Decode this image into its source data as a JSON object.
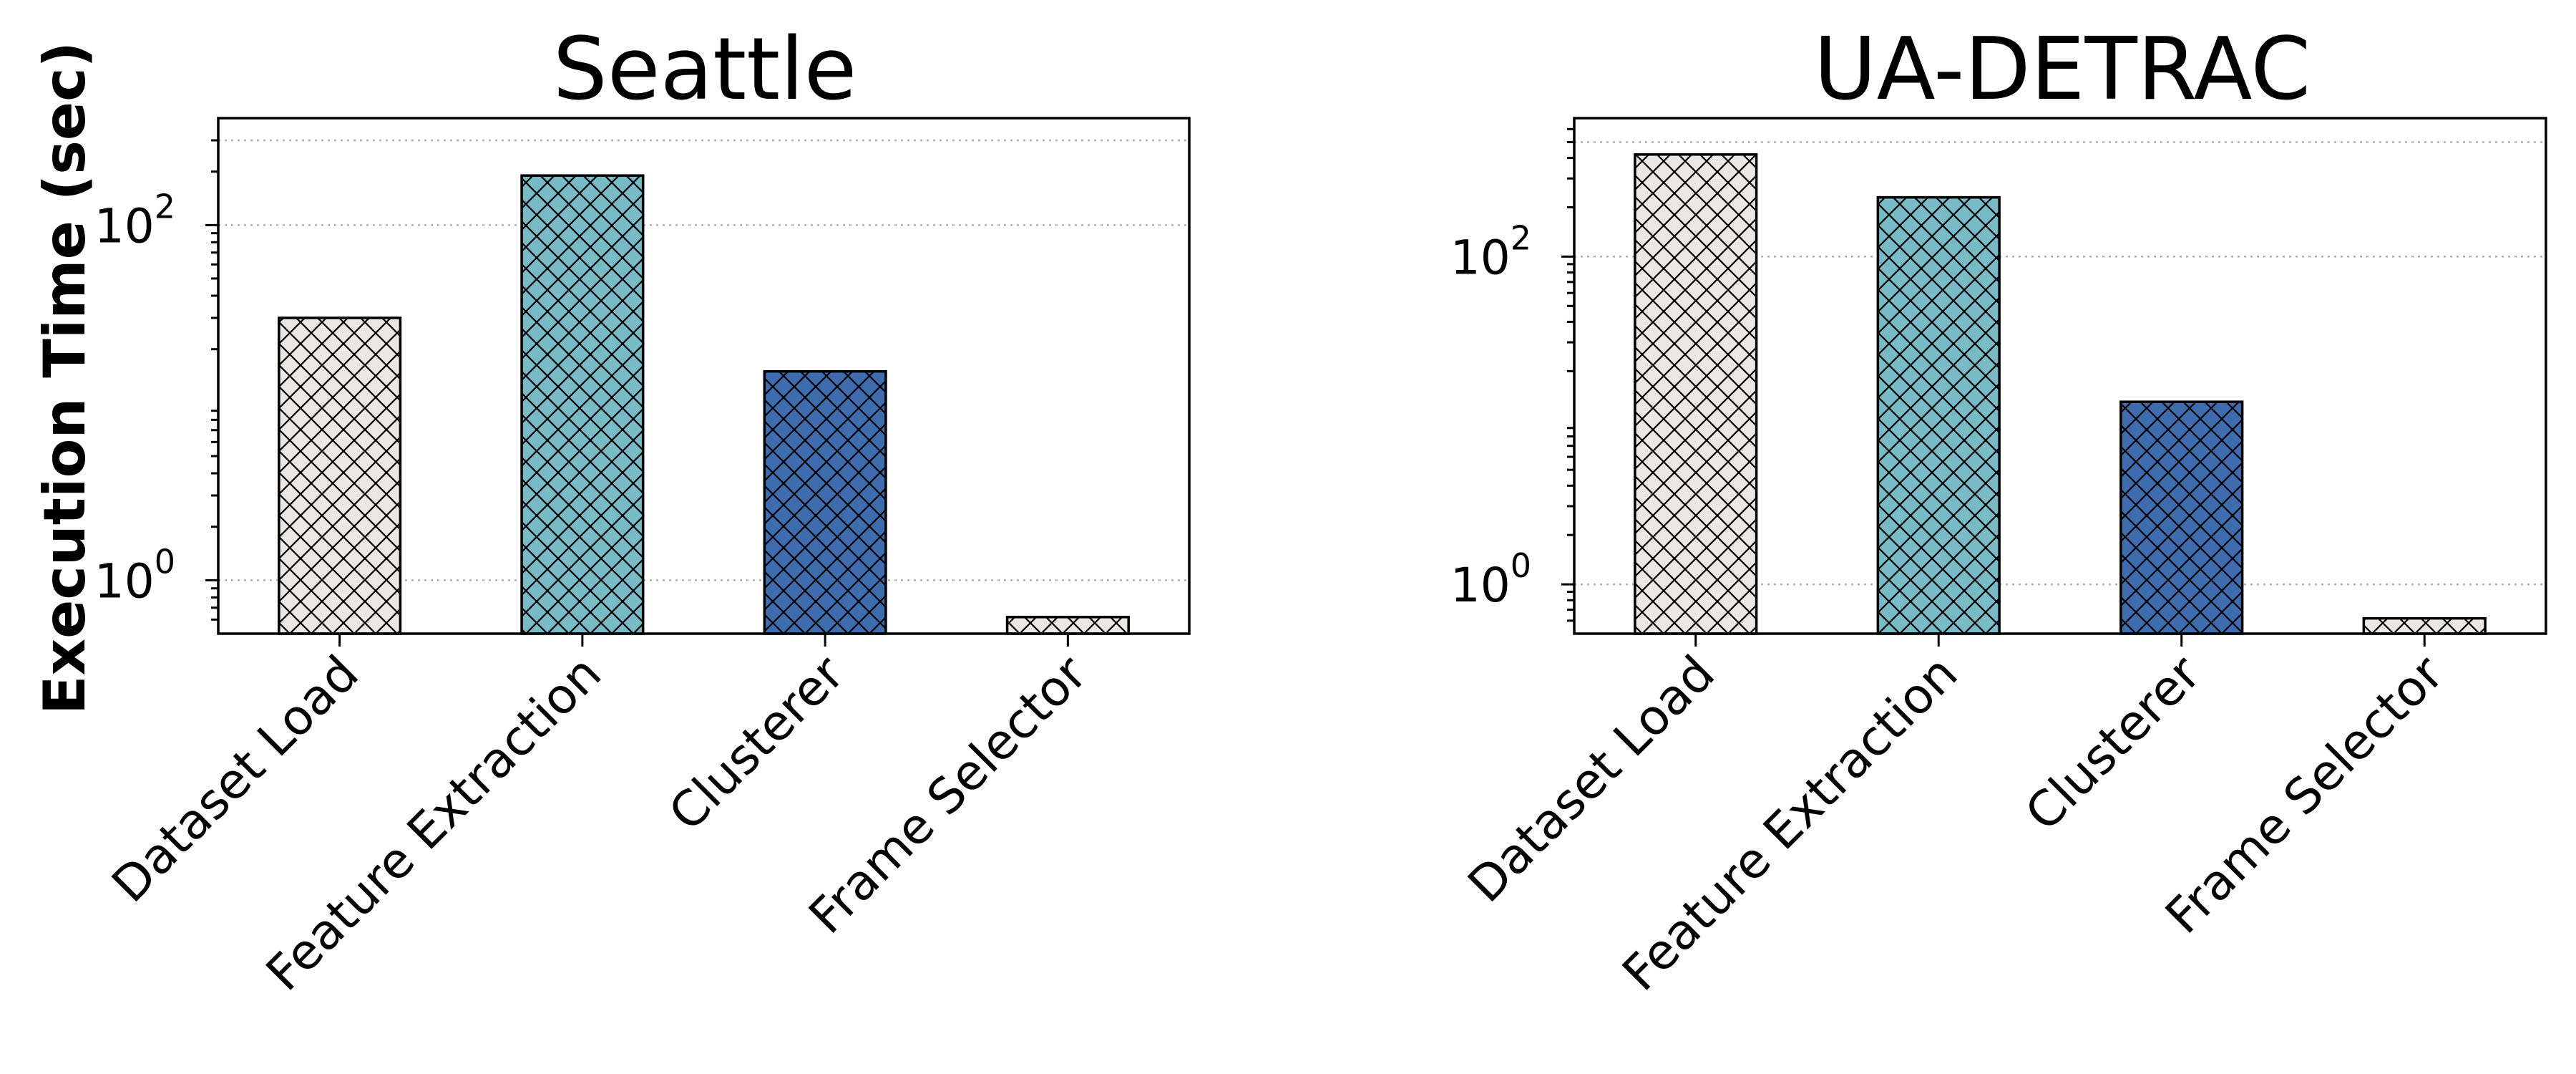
{
  "chart_data": [
    {
      "type": "bar",
      "title": "Seattle",
      "ylabel": "Execution Time (sec)",
      "yscale": "log",
      "ylim": [
        0.5,
        400
      ],
      "y_ticks": [
        1,
        100
      ],
      "categories": [
        "Dataset Load",
        "Feature Extraction",
        "Clusterer",
        "Frame Selector"
      ],
      "values": [
        30,
        190,
        15,
        0.62
      ],
      "colors": [
        "#ebe6e1",
        "#78bac6",
        "#3e6cae",
        "#ebe6e1"
      ],
      "hatch": "cross",
      "grid": true
    },
    {
      "type": "bar",
      "title": "UA-DETRAC",
      "ylabel": "",
      "yscale": "log",
      "ylim": [
        0.5,
        700
      ],
      "y_ticks": [
        1,
        100
      ],
      "categories": [
        "Dataset Load",
        "Feature Extraction",
        "Clusterer",
        "Frame Selector"
      ],
      "values": [
        420,
        230,
        13,
        0.62
      ],
      "colors": [
        "#ebe6e1",
        "#78bac6",
        "#3e6cae",
        "#ebe6e1"
      ],
      "hatch": "cross",
      "grid": true
    }
  ],
  "tick_labels": {
    "base": "10",
    "exp0": "0",
    "exp2": "2"
  }
}
